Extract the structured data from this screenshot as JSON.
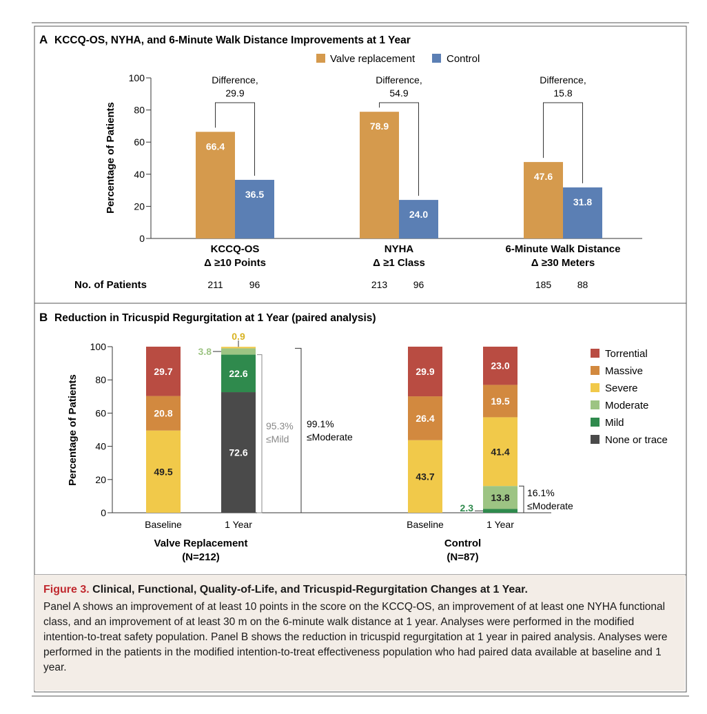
{
  "colors": {
    "valve": "#d59a4d",
    "control": "#5b7fb4",
    "torrential": "#b94c42",
    "massive": "#d2893f",
    "severe": "#f1c94a",
    "moderate": "#9dc483",
    "mild": "#2f8a4d",
    "none": "#4a4a4a",
    "frame": "#555555",
    "caption_red": "#c0282e"
  },
  "panel_a": {
    "letter": "A",
    "title": "KCCQ-OS, NYHA, and 6-Minute Walk Distance Improvements at 1 Year",
    "no_patients_label": "No. of Patients"
  },
  "panel_b": {
    "letter": "B",
    "title": "Reduction in Tricuspid Regurgitation at 1 Year (paired analysis)"
  },
  "chart_data": [
    {
      "type": "bar",
      "title": "KCCQ-OS, NYHA, and 6-Minute Walk Distance Improvements at 1 Year",
      "ylabel": "Percentage of Patients",
      "ylim": [
        0,
        100
      ],
      "yticks": [
        "0",
        "20",
        "40",
        "60",
        "80",
        "100"
      ],
      "legend_position": "top",
      "categories": [
        {
          "line1": "KCCQ-OS",
          "line2": "Δ ≥10 Points",
          "diff_label": "Difference,",
          "diff_value": "29.9",
          "n": [
            "211",
            "96"
          ]
        },
        {
          "line1": "NYHA",
          "line2": "Δ ≥1 Class",
          "diff_label": "Difference,",
          "diff_value": "54.9",
          "n": [
            "213",
            "96"
          ]
        },
        {
          "line1": "6-Minute Walk Distance",
          "line2": "Δ ≥30 Meters",
          "diff_label": "Difference,",
          "diff_value": "15.8",
          "n": [
            "185",
            "88"
          ]
        }
      ],
      "series": [
        {
          "name": "Valve replacement",
          "values": [
            66.4,
            78.9,
            47.6
          ],
          "labels": [
            "66.4",
            "78.9",
            "47.6"
          ]
        },
        {
          "name": "Control",
          "values": [
            36.5,
            24.0,
            31.8
          ],
          "labels": [
            "36.5",
            "24.0",
            "31.8"
          ]
        }
      ]
    },
    {
      "type": "bar",
      "stacked": true,
      "title": "Reduction in Tricuspid Regurgitation at 1 Year (paired analysis)",
      "ylabel": "Percentage of Patients",
      "ylim": [
        0,
        100
      ],
      "yticks": [
        "0",
        "20",
        "40",
        "60",
        "80",
        "100"
      ],
      "legend_position": "right",
      "severity_levels": [
        "Torrential",
        "Massive",
        "Severe",
        "Moderate",
        "Mild",
        "None or trace"
      ],
      "groups": [
        {
          "name": "Valve Replacement",
          "n_label": "(N=212)",
          "bars": [
            {
              "label": "Baseline",
              "segments": {
                "None or trace": 0,
                "Mild": 0,
                "Moderate": 0,
                "Severe": 49.5,
                "Massive": 20.8,
                "Torrential": 29.7
              }
            },
            {
              "label": "1 Year",
              "segments": {
                "None or trace": 72.6,
                "Mild": 22.6,
                "Moderate": 3.8,
                "Severe": 0.9,
                "Massive": 0,
                "Torrential": 0
              }
            }
          ],
          "value_labels": {
            "baseline_severe": "49.5",
            "baseline_massive": "20.8",
            "baseline_torrential": "29.7",
            "year_none": "72.6",
            "year_mild": "22.6",
            "year_moderate": "3.8",
            "year_severe": "0.9"
          },
          "annotations": [
            {
              "value": "95.3%",
              "text": "≤Mild"
            },
            {
              "value": "99.1%",
              "text": "≤Moderate"
            }
          ]
        },
        {
          "name": "Control",
          "n_label": "(N=87)",
          "bars": [
            {
              "label": "Baseline",
              "segments": {
                "None or trace": 0,
                "Mild": 0,
                "Moderate": 0,
                "Severe": 43.7,
                "Massive": 26.4,
                "Torrential": 29.9
              }
            },
            {
              "label": "1 Year",
              "segments": {
                "None or trace": 0,
                "Mild": 2.3,
                "Moderate": 13.8,
                "Severe": 41.4,
                "Massive": 19.5,
                "Torrential": 23.0
              }
            }
          ],
          "value_labels": {
            "baseline_severe": "43.7",
            "baseline_massive": "26.4",
            "baseline_torrential": "29.9",
            "year_mild": "2.3",
            "year_moderate": "13.8",
            "year_severe": "41.4",
            "year_massive": "19.5",
            "year_torrential": "23.0"
          },
          "annotations": [
            {
              "value": "16.1%",
              "text": "≤Moderate"
            }
          ]
        }
      ]
    }
  ],
  "caption": {
    "figure_label": "Figure 3.",
    "title": "Clinical, Functional, Quality-of-Life, and Tricuspid-Regurgitation Changes at 1 Year.",
    "text": "Panel A shows an improvement of at least 10 points in the score on the KCCQ-OS, an improvement of at least one NYHA functional class, and an improvement of at least 30 m on the 6-minute walk distance at 1 year. Analyses were performed in the modified intention-to-treat safety population. Panel B shows the reduction in tricuspid regurgitation at 1 year in paired analysis. Analyses were performed in the patients in the modified intention-to-treat effectiveness population who had paired data available at baseline and 1 year."
  }
}
